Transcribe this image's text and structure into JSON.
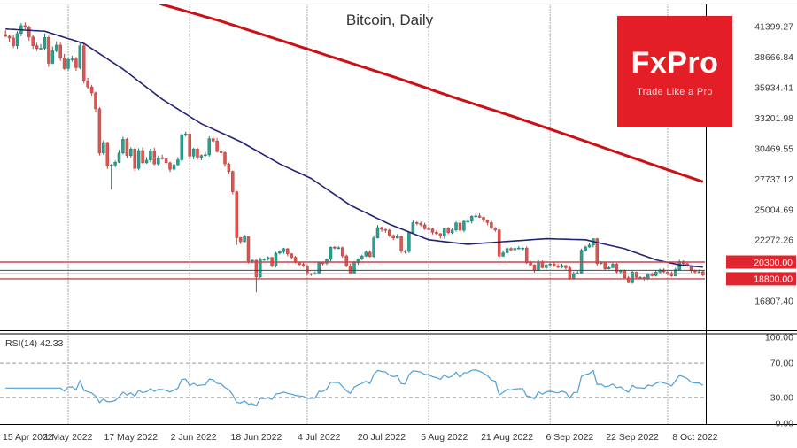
{
  "title": "Bitcoin, Daily",
  "logo": {
    "name": "FxPro",
    "tagline": "Trade Like a Pro",
    "bg": "#e31e26"
  },
  "rsi_label": "RSI(14) 42.33",
  "colors": {
    "up": "#2aa18f",
    "up_border": "#1d7c6d",
    "down": "#de544f",
    "down_border": "#b93f3b",
    "ma_fast": "#232375",
    "ma_slow": "#cc1016",
    "grid": "#555555",
    "rsi": "#4f9fd4",
    "level": "#999999",
    "axis_text": "#3b3b3b",
    "tag_bg": "#e0252e",
    "tag_text": "#ffffff",
    "border": "#000000"
  },
  "y_axis": [
    "41399.27",
    "38666.84",
    "35934.41",
    "33201.98",
    "30469.55",
    "27737.12",
    "25004.69",
    "22272.26",
    "16807.40"
  ],
  "price_tags": [
    {
      "label": "20300.00",
      "value": 20300
    },
    {
      "label": "18800.00",
      "value": 18800
    }
  ],
  "rsi_axis": [
    "100.00",
    "70.00",
    "30.00",
    "0.00"
  ],
  "x_axis": [
    {
      "day": 0,
      "label": "15 Apr 2022"
    },
    {
      "day": 16,
      "label": "1 May 2022"
    },
    {
      "day": 32,
      "label": "17 May 2022"
    },
    {
      "day": 48,
      "label": "2 Jun 2022"
    },
    {
      "day": 64,
      "label": "18 Jun 2022"
    },
    {
      "day": 80,
      "label": "4 Jul 2022"
    },
    {
      "day": 96,
      "label": "20 Jul 2022"
    },
    {
      "day": 112,
      "label": "5 Aug 2022"
    },
    {
      "day": 128,
      "label": "21 Aug 2022"
    },
    {
      "day": 144,
      "label": "6 Sep 2022"
    },
    {
      "day": 160,
      "label": "22 Sep 2022"
    },
    {
      "day": 176,
      "label": "8 Oct 2022"
    }
  ],
  "month_gridline_days": [
    16,
    47,
    77,
    108,
    139,
    169
  ],
  "chart_data": {
    "type": "candlestick",
    "title": "Bitcoin, Daily",
    "ylim": [
      14350,
      43400
    ],
    "y_ticks": [
      41399.27,
      38666.84,
      35934.41,
      33201.98,
      30469.55,
      27737.12,
      25004.69,
      22272.26,
      16807.4
    ],
    "closes": [
      40550,
      40380,
      39700,
      40800,
      41500,
      41370,
      40480,
      39700,
      39450,
      39470,
      40440,
      38120,
      39240,
      39750,
      38600,
      37650,
      38470,
      38510,
      37730,
      39690,
      36550,
      36000,
      35470,
      34040,
      30080,
      31020,
      28940,
      29000,
      29250,
      30080,
      31300,
      29850,
      30440,
      28700,
      30300,
      29200,
      29440,
      30290,
      29100,
      29650,
      29560,
      29200,
      28620,
      29030,
      29470,
      31730,
      31790,
      29800,
      30450,
      29700,
      29860,
      29920,
      31370,
      31150,
      30210,
      30110,
      29100,
      28420,
      26600,
      22490,
      22130,
      22570,
      20380,
      20470,
      18970,
      20570,
      20570,
      20710,
      19970,
      21100,
      21230,
      21500,
      21030,
      20730,
      20280,
      20100,
      19940,
      19270,
      19240,
      19300,
      20230,
      20190,
      20550,
      21640,
      21590,
      21590,
      20860,
      19960,
      19330,
      20230,
      20590,
      20840,
      21190,
      20790,
      22470,
      23400,
      23230,
      23160,
      22690,
      22460,
      22600,
      21310,
      21250,
      22930,
      23840,
      23770,
      23640,
      23290,
      23270,
      22980,
      22850,
      22620,
      23310,
      22950,
      23180,
      23810,
      23150,
      23950,
      23960,
      24400,
      24440,
      24310,
      24090,
      23850,
      23340,
      23190,
      20830,
      21140,
      21520,
      21400,
      21530,
      21560,
      21560,
      20240,
      20040,
      19550,
      20290,
      19800,
      20050,
      20130,
      19950,
      19830,
      19990,
      19790,
      18790,
      19290,
      19320,
      21360,
      21650,
      21830,
      22400,
      20170,
      20230,
      19700,
      19800,
      20110,
      19420,
      19540,
      18890,
      18460,
      19400,
      18920,
      18920,
      18810,
      19220,
      19080,
      19410,
      19590,
      19430,
      19310,
      19060,
      19620,
      20340,
      20160,
      19960,
      19530,
      19420,
      19440,
      19140
    ],
    "low_overrides": {
      "27": 26800,
      "59": 21830,
      "64": 17600
    },
    "ma_fast": {
      "color": "#232375",
      "keypoints": [
        [
          0,
          41200
        ],
        [
          10,
          41000
        ],
        [
          20,
          39900
        ],
        [
          30,
          37600
        ],
        [
          40,
          34900
        ],
        [
          50,
          32700
        ],
        [
          60,
          31100
        ],
        [
          70,
          29100
        ],
        [
          78,
          27800
        ],
        [
          88,
          25400
        ],
        [
          98,
          23700
        ],
        [
          108,
          22300
        ],
        [
          118,
          21900
        ],
        [
          128,
          22150
        ],
        [
          138,
          22400
        ],
        [
          148,
          22300
        ],
        [
          158,
          21500
        ],
        [
          166,
          20500
        ],
        [
          172,
          20050
        ],
        [
          178,
          19850
        ]
      ]
    },
    "ma_slow": {
      "color": "#cc1016",
      "keypoints": [
        [
          0,
          48000
        ],
        [
          20,
          45800
        ],
        [
          40,
          43400
        ],
        [
          55,
          41900
        ],
        [
          70,
          40200
        ],
        [
          85,
          38500
        ],
        [
          100,
          36800
        ],
        [
          115,
          35000
        ],
        [
          130,
          33300
        ],
        [
          145,
          31500
        ],
        [
          158,
          29900
        ],
        [
          168,
          28700
        ],
        [
          178,
          27500
        ]
      ]
    },
    "h_lines": [
      {
        "value": 20300,
        "color": "#d04046",
        "width": 1.4
      },
      {
        "value": 19560,
        "color": "#4a4a4a",
        "width": 1
      },
      {
        "value": 19260,
        "color": "#9a9a9a",
        "width": 1
      },
      {
        "value": 18800,
        "color": "#c5484f",
        "width": 1.4
      }
    ],
    "rsi": {
      "period": 14,
      "current": 42.33,
      "levels": [
        70,
        30
      ],
      "ylim": [
        0,
        100
      ]
    }
  }
}
